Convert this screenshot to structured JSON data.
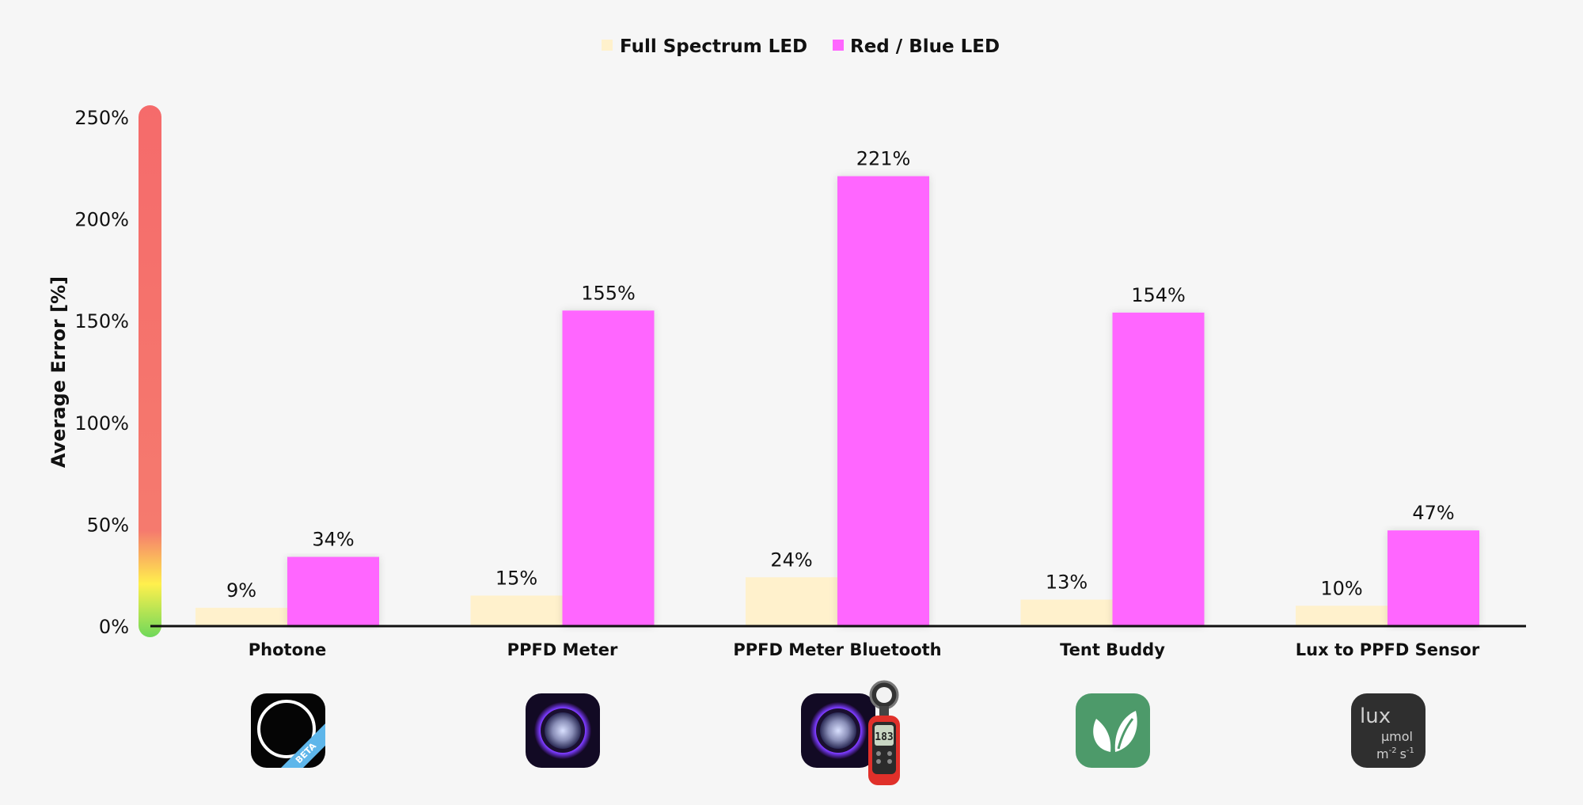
{
  "chart_data": {
    "type": "bar",
    "title": "",
    "xlabel": "",
    "ylabel": "Average Error [%]",
    "ylim": [
      0,
      250
    ],
    "yticks": [
      0,
      50,
      100,
      150,
      200,
      250
    ],
    "ytick_labels": [
      "0%",
      "50%",
      "100%",
      "150%",
      "200%",
      "250%"
    ],
    "grid": false,
    "legend_position": "top-center",
    "categories": [
      "Photone",
      "PPFD Meter",
      "PPFD Meter Bluetooth",
      "Tent Buddy",
      "Lux to PPFD Sensor"
    ],
    "series": [
      {
        "name": "Full Spectrum LED",
        "color": "#fff1cc",
        "values": [
          9,
          15,
          24,
          13,
          10
        ],
        "labels": [
          "9%",
          "15%",
          "24%",
          "13%",
          "10%"
        ]
      },
      {
        "name": "Red / Blue LED",
        "color": "#ff66ff",
        "values": [
          34,
          155,
          221,
          154,
          47
        ],
        "labels": [
          "34%",
          "155%",
          "221%",
          "154%",
          "47%"
        ]
      }
    ],
    "error_scale_colors": [
      "#7ed957",
      "#fff04d",
      "#ffb347",
      "#f57070",
      "#f56b6b"
    ]
  },
  "app_icons": [
    {
      "name": "photone-app-icon",
      "badge": "BETA"
    },
    {
      "name": "ppfd-meter-app-icon"
    },
    {
      "name": "ppfd-meter-bluetooth-app-icon",
      "display": "183"
    },
    {
      "name": "tent-buddy-app-icon"
    },
    {
      "name": "lux-to-ppfd-app-icon",
      "line1": "lux",
      "line2": "µmol",
      "line3": "m",
      "sup1": "-2",
      "line4": "s",
      "sup2": "-1"
    }
  ]
}
